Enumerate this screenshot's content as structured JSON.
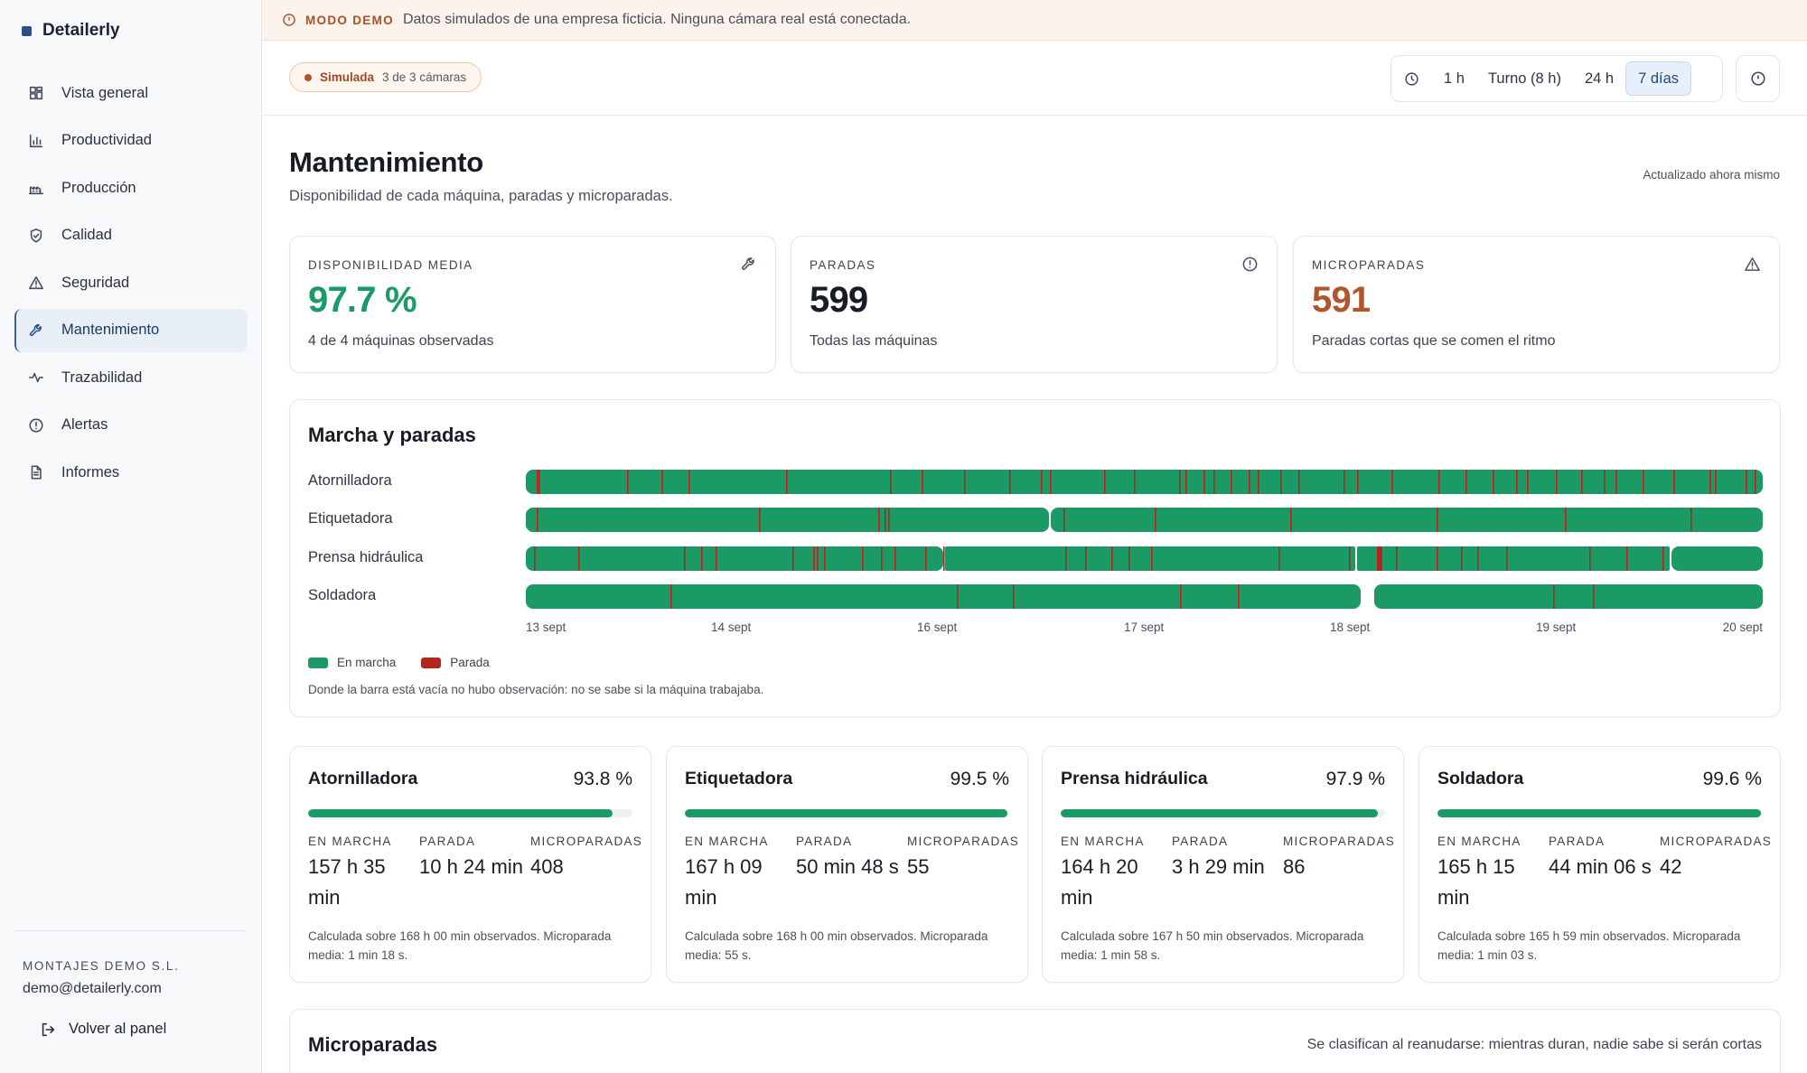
{
  "brand": {
    "name": "Detailerly",
    "color": "#2d4f85"
  },
  "sidebar": {
    "items": [
      {
        "label": "Vista general",
        "icon": "dashboard-icon"
      },
      {
        "label": "Productividad",
        "icon": "bar-chart-icon"
      },
      {
        "label": "Producción",
        "icon": "factory-icon"
      },
      {
        "label": "Calidad",
        "icon": "shield-check-icon"
      },
      {
        "label": "Seguridad",
        "icon": "warning-triangle-icon"
      },
      {
        "label": "Mantenimiento",
        "icon": "wrench-icon",
        "active": true
      },
      {
        "label": "Trazabilidad",
        "icon": "activity-pulse-icon"
      },
      {
        "label": "Alertas",
        "icon": "alert-circle-icon"
      },
      {
        "label": "Informes",
        "icon": "document-icon"
      }
    ],
    "company": "MONTAJES DEMO S.L.",
    "email": "demo@detailerly.com",
    "back_label": "Volver al panel"
  },
  "banner": {
    "tag": "MODO DEMO",
    "text": "Datos simulados de una empresa ficticia. Ninguna cámara real está conectada."
  },
  "toolbar": {
    "sim_label": "Simulada",
    "sim_count": "3 de 3 cámaras",
    "ranges": [
      "1 h",
      "Turno (8 h)",
      "24 h",
      "7 días"
    ],
    "selected_range": "7 días"
  },
  "header": {
    "title": "Mantenimiento",
    "subtitle": "Disponibilidad de cada máquina, paradas y microparadas.",
    "updated": "Actualizado ahora mismo"
  },
  "kpis": [
    {
      "label": "DISPONIBILIDAD MEDIA",
      "value": "97.7 %",
      "note": "4 de 4 máquinas observadas",
      "icon": "wrench-icon",
      "color": "#1b9a65"
    },
    {
      "label": "PARADAS",
      "value": "599",
      "note": "Todas las máquinas",
      "icon": "alert-circle-icon",
      "color": "#171c27"
    },
    {
      "label": "MICROPARADAS",
      "value": "591",
      "note": "Paradas cortas que se comen el ritmo",
      "icon": "warning-triangle-icon",
      "color": "#b0562a"
    }
  ],
  "timeline": {
    "title": "Marcha y paradas",
    "machines": [
      "Atornilladora",
      "Etiquetadora",
      "Prensa hidráulica",
      "Soldadora"
    ],
    "ticks": [
      "13 sept",
      "14 sept",
      "16 sept",
      "17 sept",
      "18 sept",
      "19 sept",
      "20 sept"
    ],
    "legend": [
      {
        "label": "En marcha",
        "color": "#1b9a65"
      },
      {
        "label": "Parada",
        "color": "#b3261e"
      }
    ],
    "footnote": "Donde la barra está vacía no hubo observación: no se sabe si la máquina trabajaba."
  },
  "machines": [
    {
      "name": "Atornilladora",
      "pct": "93.8 %",
      "availability": 0.938,
      "running": "157 h 35 min",
      "stopped": "10 h 24 min",
      "micro": "408",
      "footnote": "Calculada sobre 168 h 00 min observados. Microparada media: 1 min 18 s."
    },
    {
      "name": "Etiquetadora",
      "pct": "99.5 %",
      "availability": 0.995,
      "running": "167 h 09 min",
      "stopped": "50 min 48 s",
      "micro": "55",
      "footnote": "Calculada sobre 168 h 00 min observados. Microparada media: 55 s."
    },
    {
      "name": "Prensa hidráulica",
      "pct": "97.9 %",
      "availability": 0.979,
      "running": "164 h 20 min",
      "stopped": "3 h 29 min",
      "micro": "86",
      "footnote": "Calculada sobre 167 h 50 min observados. Microparada media: 1 min 58 s."
    },
    {
      "name": "Soldadora",
      "pct": "99.6 %",
      "availability": 0.996,
      "running": "165 h 15 min",
      "stopped": "44 min 06 s",
      "micro": "42",
      "footnote": "Calculada sobre 165 h 59 min observados. Microparada media: 1 min 03 s."
    }
  ],
  "machine_labels": {
    "running": "EN MARCHA",
    "stopped": "PARADA",
    "micro": "MICROPARADAS"
  },
  "micro_section": {
    "title": "Microparadas",
    "note": "Se clasifican al reanudarse: mientras duran, nadie sabe si serán cortas"
  }
}
